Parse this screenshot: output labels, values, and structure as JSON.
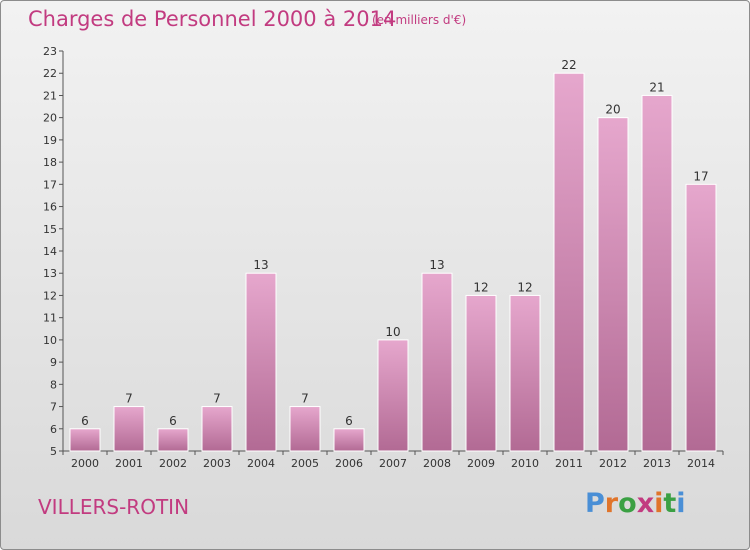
{
  "title": "Charges de Personnel 2000 à 2014",
  "subtitle": "(en milliers d'€)",
  "commune": "VILLERS-ROTIN",
  "logo": {
    "text": "Proxiti",
    "letter_colors": [
      "#4a8fd6",
      "#e0742a",
      "#3aa043",
      "#c23b80",
      "#e0742a",
      "#3aa043",
      "#4a8fd6"
    ]
  },
  "colors": {
    "bar_top": "#e6a7cd",
    "bar_bottom": "#b26a94",
    "bar_stroke": "#ffffff",
    "text": "#333333",
    "title": "#c23b80"
  },
  "chart_data": {
    "type": "bar",
    "categories": [
      "2000",
      "2001",
      "2002",
      "2003",
      "2004",
      "2005",
      "2006",
      "2007",
      "2008",
      "2009",
      "2010",
      "2011",
      "2012",
      "2013",
      "2014"
    ],
    "values": [
      6,
      7,
      6,
      7,
      13,
      7,
      6,
      10,
      13,
      12,
      12,
      22,
      20,
      21,
      17
    ],
    "ylim": [
      5,
      23
    ],
    "yticks": [
      5,
      6,
      7,
      8,
      9,
      10,
      11,
      12,
      13,
      14,
      15,
      16,
      17,
      18,
      19,
      20,
      21,
      22,
      23
    ],
    "grid": false,
    "data_labels": true
  }
}
